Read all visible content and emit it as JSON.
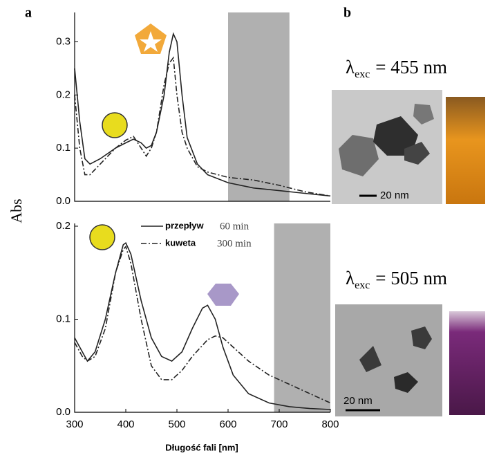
{
  "figure": {
    "panel_labels": [
      "a",
      "b"
    ],
    "y_label": "Abs",
    "x_label": "Długość fali [nm]",
    "excitations": [
      {
        "symbol": "λ",
        "subscript": "exc",
        "text": "= 455 nm"
      },
      {
        "symbol": "λ",
        "subscript": "exc",
        "text": "= 505 nm"
      }
    ],
    "scale_bars": [
      "20 nm",
      "20 nm"
    ]
  },
  "chart_data": [
    {
      "type": "line",
      "xlim": [
        300,
        800
      ],
      "ylim": [
        0,
        0.35
      ],
      "yticks": [
        {
          "value": 0,
          "label": "0.0"
        },
        0.1,
        0.2,
        0.3
      ],
      "highlight_range": [
        600,
        720
      ],
      "x": [
        300,
        310,
        320,
        330,
        350,
        380,
        400,
        415,
        430,
        440,
        450,
        460,
        475,
        485,
        493,
        500,
        510,
        520,
        540,
        560,
        600,
        650,
        700,
        750,
        800
      ],
      "series": [
        {
          "name": "przepływ",
          "style": "solid",
          "color": "#222222",
          "values": [
            0.25,
            0.15,
            0.08,
            0.07,
            0.08,
            0.1,
            0.11,
            0.117,
            0.11,
            0.1,
            0.105,
            0.13,
            0.2,
            0.28,
            0.315,
            0.3,
            0.2,
            0.12,
            0.07,
            0.05,
            0.035,
            0.025,
            0.02,
            0.015,
            0.01
          ]
        },
        {
          "name": "kuweta",
          "style": "dashdot",
          "color": "#222222",
          "values": [
            0.2,
            0.1,
            0.05,
            0.05,
            0.07,
            0.1,
            0.115,
            0.122,
            0.1,
            0.085,
            0.1,
            0.13,
            0.22,
            0.26,
            0.27,
            0.2,
            0.13,
            0.1,
            0.065,
            0.055,
            0.045,
            0.04,
            0.03,
            0.018,
            0.01
          ]
        }
      ]
    },
    {
      "type": "line",
      "xlim": [
        300,
        800
      ],
      "ylim": [
        0,
        0.2
      ],
      "xticks": [
        300,
        400,
        500,
        600,
        700,
        800
      ],
      "yticks": [
        {
          "value": 0,
          "label": "0.0"
        },
        0.1,
        0.2
      ],
      "highlight_range": [
        690,
        800
      ],
      "x": [
        300,
        315,
        325,
        340,
        360,
        380,
        395,
        400,
        410,
        430,
        450,
        470,
        490,
        510,
        530,
        550,
        560,
        575,
        590,
        610,
        640,
        680,
        720,
        760,
        800
      ],
      "series": [
        {
          "name": "przepływ",
          "time": "60 min",
          "style": "solid",
          "color": "#222222",
          "values": [
            0.08,
            0.065,
            0.055,
            0.065,
            0.1,
            0.15,
            0.18,
            0.182,
            0.17,
            0.12,
            0.08,
            0.06,
            0.055,
            0.065,
            0.09,
            0.112,
            0.115,
            0.1,
            0.07,
            0.04,
            0.02,
            0.01,
            0.006,
            0.004,
            0.003
          ]
        },
        {
          "name": "kuweta",
          "time": "300 min",
          "style": "dashdot",
          "color": "#222222",
          "values": [
            0.075,
            0.06,
            0.055,
            0.06,
            0.09,
            0.15,
            0.175,
            0.178,
            0.16,
            0.1,
            0.05,
            0.035,
            0.035,
            0.045,
            0.06,
            0.072,
            0.078,
            0.082,
            0.08,
            0.07,
            0.055,
            0.04,
            0.03,
            0.02,
            0.01
          ]
        }
      ]
    }
  ]
}
